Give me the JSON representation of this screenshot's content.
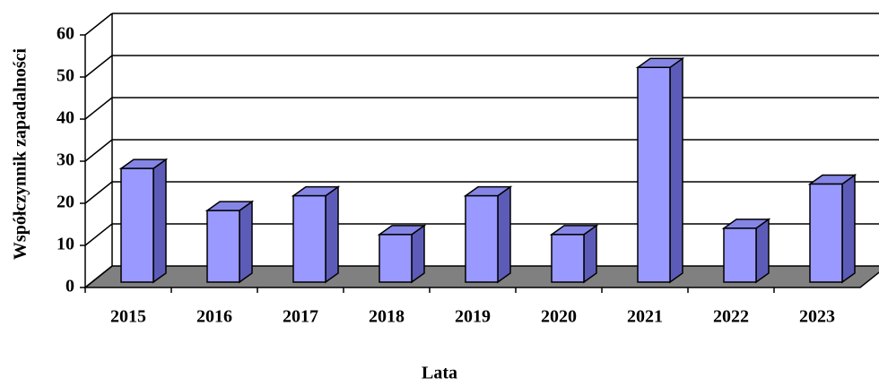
{
  "chart_data": {
    "type": "bar3d",
    "categories": [
      "2015",
      "2016",
      "2017",
      "2018",
      "2019",
      "2020",
      "2021",
      "2022",
      "2023"
    ],
    "values": [
      27,
      17,
      20.5,
      11.3,
      20.5,
      11.3,
      51,
      12.8,
      23.3
    ],
    "color": "#9999ff",
    "ylim": [
      0,
      60
    ],
    "yticks": [
      0,
      10,
      20,
      30,
      40,
      50,
      60
    ],
    "grid": true,
    "xlabel": "Lata",
    "ylabel": "Współczynnik zapadalności"
  }
}
